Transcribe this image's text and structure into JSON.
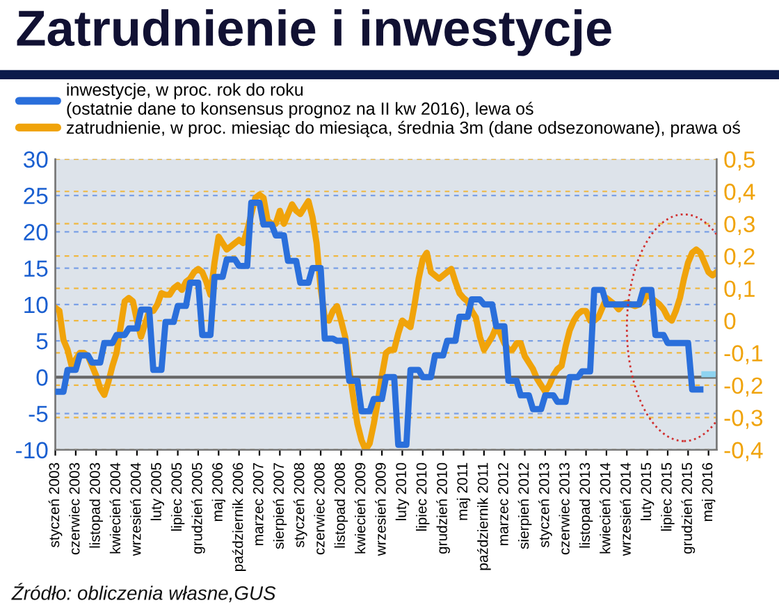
{
  "chart_data": {
    "type": "line",
    "title": "Zatrudnienie i inwestycje",
    "annotations": [
      "Źródło: obliczenia własne,GUS"
    ],
    "categories": [
      "styczeń 2003",
      null,
      null,
      null,
      null,
      "czerwiec 2003",
      null,
      null,
      null,
      null,
      "listopad 2003",
      null,
      null,
      null,
      null,
      "kwiecień 2004",
      null,
      null,
      null,
      null,
      "wrzesień 2004",
      null,
      null,
      null,
      null,
      "luty 2005",
      null,
      null,
      null,
      null,
      "lipiec 2005",
      null,
      null,
      null,
      null,
      "grudzień 2005",
      null,
      null,
      null,
      null,
      "maj 2006",
      null,
      null,
      null,
      null,
      "październik 2006",
      null,
      null,
      null,
      null,
      "marzec 2007",
      null,
      null,
      null,
      null,
      "sierpień 2007",
      null,
      null,
      null,
      null,
      "styczeń 2008",
      null,
      null,
      null,
      null,
      "czerwiec 2008",
      null,
      null,
      null,
      null,
      "listopad 2008",
      null,
      null,
      null,
      null,
      "kwiecień 2009",
      null,
      null,
      null,
      null,
      "wrzesień 2009",
      null,
      null,
      null,
      null,
      "luty 2010",
      null,
      null,
      null,
      null,
      "lipiec 2010",
      null,
      null,
      null,
      null,
      "grudzień 2010",
      null,
      null,
      null,
      null,
      "maj 2011",
      null,
      null,
      null,
      null,
      "październik 2011",
      null,
      null,
      null,
      null,
      "marzec 2012",
      null,
      null,
      null,
      null,
      "sierpień 2012",
      null,
      null,
      null,
      null,
      "styczeń 2013",
      null,
      null,
      null,
      null,
      "czerwiec 2013",
      null,
      null,
      null,
      null,
      "listopad 2013",
      null,
      null,
      null,
      null,
      "kwiecień 2014",
      null,
      null,
      null,
      null,
      "wrzesień 2014",
      null,
      null,
      null,
      null,
      "luty 2015",
      null,
      null,
      null,
      null,
      "lipiec 2015",
      null,
      null,
      null,
      null,
      "grudzień 2015",
      null,
      null,
      null,
      null,
      "maj 2016",
      null,
      null
    ],
    "series": [
      {
        "name": "inwestycje, w proc. rok do roku\n(ostatnie dane to konsensus prognoz na II kw 2016), lewa oś",
        "color": "#2a6fdb",
        "values": [
          -2,
          -2,
          -2,
          1,
          1,
          1,
          3,
          3,
          3,
          2,
          2,
          2,
          4.7,
          4.7,
          4.7,
          5.8,
          5.8,
          5.8,
          6.7,
          6.7,
          6.7,
          9.3,
          9.3,
          9.3,
          1,
          1,
          1,
          7.6,
          7.6,
          7.6,
          9.8,
          9.8,
          9.8,
          13,
          13,
          13,
          5.8,
          5.8,
          5.8,
          13.8,
          13.8,
          13.8,
          16.2,
          16.2,
          16.2,
          15.3,
          15.3,
          15.3,
          24,
          24,
          24,
          21,
          21,
          21,
          19.5,
          19.5,
          19.5,
          16,
          16,
          16,
          13,
          13,
          13,
          15,
          15,
          15,
          5.3,
          5.3,
          5.3,
          5,
          5,
          5,
          -0.5,
          -0.5,
          -0.5,
          -4.7,
          -4.7,
          -4.7,
          -3,
          -3,
          -3,
          0,
          0,
          0,
          -9.3,
          -9.3,
          -9.3,
          1,
          1,
          1,
          0,
          0,
          0,
          3,
          3,
          3,
          5,
          5,
          5,
          8.3,
          8.3,
          8.3,
          10.7,
          10.7,
          10.7,
          10,
          10,
          10,
          7,
          7,
          7,
          -0.5,
          -0.5,
          -0.5,
          -2.5,
          -2.5,
          -2.5,
          -4.4,
          -4.4,
          -4.4,
          -2.5,
          -2.5,
          -2.5,
          -3.4,
          -3.4,
          -3.4,
          0,
          0,
          0,
          0.8,
          0.8,
          0.8,
          12,
          12,
          12,
          10,
          10,
          10,
          10,
          10,
          10,
          10,
          10,
          10,
          12,
          12,
          12,
          5.8,
          5.8,
          5.8,
          4.7,
          4.7,
          4.7,
          4.7,
          4.7,
          4.7,
          -1.7,
          -1.7,
          -1.7,
          null,
          null,
          null,
          null
        ]
      },
      {
        "color": "#8ed3f0",
        "values": [
          null,
          null,
          null,
          null,
          null,
          null,
          null,
          null,
          null,
          null,
          null,
          null,
          null,
          null,
          null,
          null,
          null,
          null,
          null,
          null,
          null,
          null,
          null,
          null,
          null,
          null,
          null,
          null,
          null,
          null,
          null,
          null,
          null,
          null,
          null,
          null,
          null,
          null,
          null,
          null,
          null,
          null,
          null,
          null,
          null,
          null,
          null,
          null,
          null,
          null,
          null,
          null,
          null,
          null,
          null,
          null,
          null,
          null,
          null,
          null,
          null,
          null,
          null,
          null,
          null,
          null,
          null,
          null,
          null,
          null,
          null,
          null,
          null,
          null,
          null,
          null,
          null,
          null,
          null,
          null,
          null,
          null,
          null,
          null,
          null,
          null,
          null,
          null,
          null,
          null,
          null,
          null,
          null,
          null,
          null,
          null,
          null,
          null,
          null,
          null,
          null,
          null,
          null,
          null,
          null,
          null,
          null,
          null,
          null,
          null,
          null,
          null,
          null,
          null,
          null,
          null,
          null,
          null,
          null,
          null,
          null,
          null,
          null,
          null,
          null,
          null,
          null,
          null,
          null,
          null,
          null,
          null,
          null,
          null,
          null,
          null,
          null,
          null,
          null,
          null,
          null,
          null,
          null,
          null,
          null,
          null,
          null,
          null,
          null,
          null,
          null,
          null,
          null,
          null,
          null,
          null,
          null,
          null,
          null,
          0.4,
          0.4,
          0.4,
          null
        ]
      },
      {
        "name": "zatrudnienie, w proc. miesiąc do miesiąca, średnia 3m (dane odsezonowane), prawa oś",
        "color": "#f0a30a",
        "axis": "y2",
        "values": [
          0.04,
          0.03,
          -0.06,
          -0.09,
          -0.14,
          -0.12,
          -0.1,
          -0.1,
          -0.11,
          -0.14,
          -0.17,
          -0.21,
          -0.23,
          -0.19,
          -0.14,
          -0.1,
          -0.02,
          0.06,
          0.07,
          0.06,
          0.0,
          -0.05,
          -0.01,
          0.03,
          0.03,
          0.05,
          0.085,
          0.08,
          0.08,
          0.1,
          0.11,
          0.095,
          0.12,
          0.13,
          0.15,
          0.16,
          0.15,
          0.12,
          0.08,
          0.18,
          0.26,
          0.24,
          0.22,
          0.23,
          0.24,
          0.25,
          0.24,
          0.28,
          0.33,
          0.38,
          0.39,
          0.38,
          0.31,
          0.3,
          0.3,
          0.34,
          0.3,
          0.33,
          0.36,
          0.34,
          0.33,
          0.35,
          0.37,
          0.32,
          0.24,
          0.1,
          0.01,
          0.0,
          0.03,
          0.045,
          0.0,
          -0.05,
          -0.15,
          -0.24,
          -0.32,
          -0.37,
          -0.4,
          -0.38,
          -0.32,
          -0.25,
          -0.17,
          -0.1,
          -0.09,
          -0.09,
          -0.04,
          0.0,
          -0.01,
          -0.02,
          0.05,
          0.13,
          0.19,
          0.21,
          0.15,
          0.14,
          0.13,
          0.14,
          0.15,
          0.16,
          0.12,
          0.085,
          0.07,
          0.06,
          0.03,
          0.01,
          -0.05,
          -0.09,
          -0.07,
          -0.05,
          -0.02,
          -0.04,
          -0.07,
          -0.09,
          -0.09,
          -0.07,
          -0.07,
          -0.11,
          -0.13,
          -0.15,
          -0.18,
          -0.2,
          -0.22,
          -0.2,
          -0.17,
          -0.15,
          -0.14,
          -0.08,
          -0.03,
          0.0,
          0.02,
          0.03,
          0.03,
          0.0,
          0.0,
          0.01,
          0.04,
          0.07,
          0.06,
          0.05,
          0.035,
          0.05,
          0.055,
          0.05,
          0.045,
          0.05,
          0.06,
          0.085,
          0.07,
          0.06,
          0.05,
          0.035,
          0.01,
          0.0,
          0.03,
          0.07,
          0.13,
          0.18,
          0.21,
          0.22,
          0.21,
          0.18,
          0.15,
          0.14,
          0.15
        ]
      }
    ],
    "ylim": [
      -10,
      30
    ],
    "yticks": [
      -10,
      -5,
      0,
      5,
      10,
      15,
      20,
      25,
      30
    ],
    "y2lim": [
      -0.4,
      0.5
    ],
    "y2ticks": [
      {
        "value": -0.4,
        "label": "-0,4"
      },
      {
        "value": -0.3,
        "label": "-0,3"
      },
      {
        "value": -0.2,
        "label": "-0,2"
      },
      {
        "value": -0.1,
        "label": "-0,1"
      },
      {
        "value": 0,
        "label": "0"
      },
      {
        "value": 0.1,
        "label": "0,1"
      },
      {
        "value": 0.2,
        "label": "0,2"
      },
      {
        "value": 0.3,
        "label": "0,3"
      },
      {
        "value": 0.4,
        "label": "0,4"
      },
      {
        "value": 0.5,
        "label": "0,5"
      }
    ],
    "ref_lines": [
      {
        "axis": "y",
        "value": 0,
        "color": "#666666"
      }
    ],
    "grid": "y",
    "legend": "top",
    "line_style": "solid",
    "marker": "none"
  }
}
